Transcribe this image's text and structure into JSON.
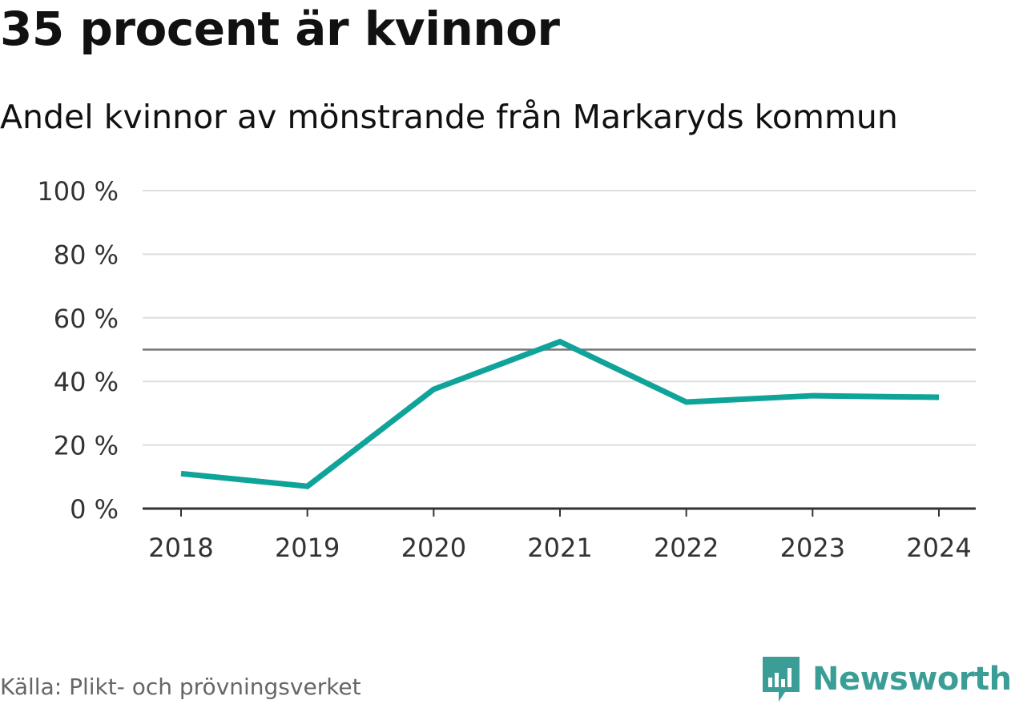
{
  "title": "35 procent är kvinnor",
  "subtitle": "Andel kvinnor av mönstrande från Markaryds kommun",
  "source": "Källa: Plikt- och prövningsverket",
  "brand": {
    "name": "Newsworthy",
    "icon": "newsworthy-logo-icon",
    "color": "#3a9e97"
  },
  "colors": {
    "line": "#0fa39a",
    "grid": "#dddddd",
    "reference": "#777777",
    "axis": "#333333"
  },
  "chart_data": {
    "type": "line",
    "title": "35 procent är kvinnor",
    "subtitle": "Andel kvinnor av mönstrande från Markaryds kommun",
    "xlabel": "",
    "ylabel": "",
    "categories": [
      "2018",
      "2019",
      "2020",
      "2021",
      "2022",
      "2023",
      "2024"
    ],
    "series": [
      {
        "name": "Andel kvinnor",
        "values": [
          11,
          7,
          37.5,
          52.5,
          33.5,
          35.5,
          35
        ]
      }
    ],
    "ylim": [
      0,
      100
    ],
    "yticks": [
      0,
      20,
      40,
      60,
      80,
      100
    ],
    "ytick_labels": [
      "0 %",
      "20 %",
      "40 %",
      "60 %",
      "80 %",
      "100 %"
    ],
    "reference_line": 50,
    "grid": true,
    "legend": "none"
  }
}
